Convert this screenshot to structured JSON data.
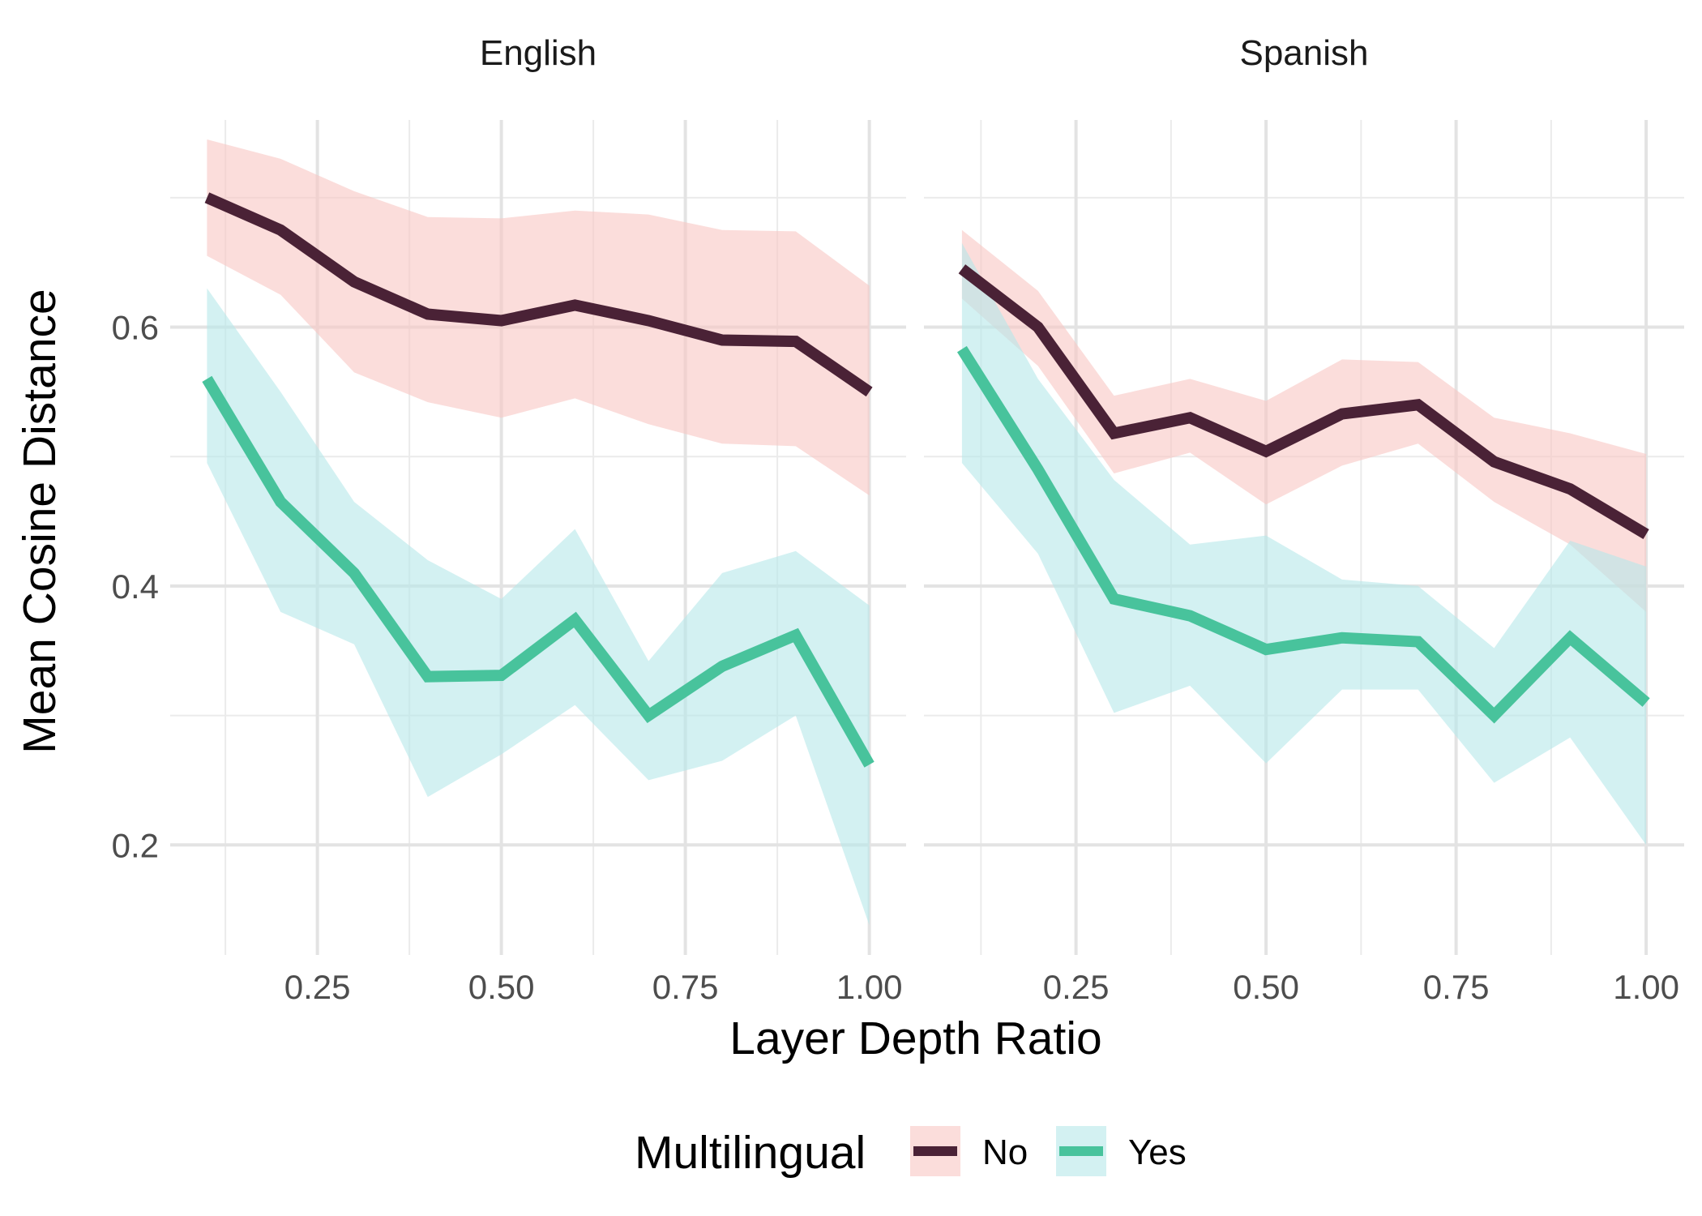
{
  "chart_data": {
    "type": "line",
    "facets": [
      "English",
      "Spanish"
    ],
    "xlabel": "Layer Depth Ratio",
    "ylabel": "Mean Cosine Distance",
    "xlim": [
      0.05,
      1.05
    ],
    "ylim": [
      0.115,
      0.76
    ],
    "x_ticks": [
      0.25,
      0.5,
      0.75,
      1.0
    ],
    "x_tick_labels": [
      "0.25",
      "0.50",
      "0.75",
      "1.00"
    ],
    "y_ticks": [
      0.2,
      0.4,
      0.6
    ],
    "y_tick_labels": [
      "0.2",
      "0.4",
      "0.6"
    ],
    "x": [
      0.1,
      0.2,
      0.3,
      0.4,
      0.5,
      0.6,
      0.7,
      0.8,
      0.9,
      1.0
    ],
    "legend": {
      "title": "Multilingual",
      "position": "bottom",
      "entries": [
        {
          "key": "No",
          "label": "No"
        },
        {
          "key": "Yes",
          "label": "Yes"
        }
      ]
    },
    "colors": {
      "No": {
        "line": "#4a2236",
        "ribbon": "#f9c6c3"
      },
      "Yes": {
        "line": "#48c39c",
        "ribbon": "#b6e7ea"
      }
    },
    "panels": [
      {
        "name": "English",
        "series": [
          {
            "name": "No",
            "values": [
              0.7,
              0.675,
              0.635,
              0.61,
              0.605,
              0.617,
              0.605,
              0.59,
              0.589,
              0.55
            ],
            "lower": [
              0.655,
              0.625,
              0.565,
              0.542,
              0.53,
              0.545,
              0.525,
              0.51,
              0.508,
              0.47
            ],
            "upper": [
              0.745,
              0.73,
              0.705,
              0.685,
              0.684,
              0.69,
              0.687,
              0.675,
              0.674,
              0.632
            ]
          },
          {
            "name": "Yes",
            "values": [
              0.56,
              0.465,
              0.41,
              0.33,
              0.331,
              0.374,
              0.3,
              0.338,
              0.362,
              0.262
            ],
            "lower": [
              0.495,
              0.38,
              0.355,
              0.237,
              0.27,
              0.308,
              0.25,
              0.265,
              0.3,
              0.138
            ],
            "upper": [
              0.63,
              0.55,
              0.465,
              0.42,
              0.39,
              0.444,
              0.342,
              0.41,
              0.427,
              0.385
            ]
          }
        ]
      },
      {
        "name": "Spanish",
        "series": [
          {
            "name": "No",
            "values": [
              0.645,
              0.6,
              0.518,
              0.53,
              0.504,
              0.533,
              0.54,
              0.496,
              0.475,
              0.44
            ],
            "lower": [
              0.622,
              0.57,
              0.487,
              0.503,
              0.463,
              0.493,
              0.51,
              0.465,
              0.432,
              0.38
            ],
            "upper": [
              0.675,
              0.628,
              0.547,
              0.56,
              0.543,
              0.575,
              0.573,
              0.53,
              0.518,
              0.502
            ]
          },
          {
            "name": "Yes",
            "values": [
              0.583,
              0.49,
              0.39,
              0.377,
              0.351,
              0.36,
              0.357,
              0.3,
              0.36,
              0.31
            ],
            "lower": [
              0.495,
              0.425,
              0.302,
              0.323,
              0.263,
              0.32,
              0.32,
              0.248,
              0.283,
              0.2
            ],
            "upper": [
              0.665,
              0.56,
              0.482,
              0.432,
              0.439,
              0.405,
              0.4,
              0.352,
              0.435,
              0.415
            ]
          }
        ]
      }
    ]
  }
}
